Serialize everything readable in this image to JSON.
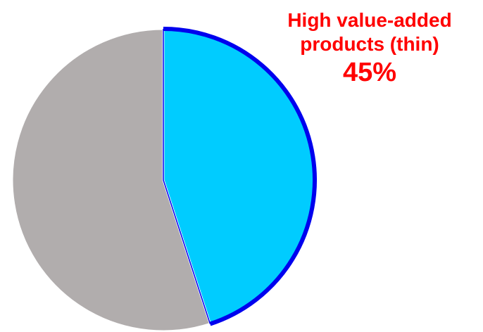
{
  "chart_data": {
    "type": "pie",
    "title": "",
    "slices": [
      {
        "label_lines": [
          "High value-added",
          "products (thin)"
        ],
        "value_label": "45%",
        "value": 45,
        "color": "#00ccff",
        "edge_color": "#0000ee",
        "label_color": "#ff0000"
      },
      {
        "label_lines": [],
        "value_label": "",
        "value": 55,
        "color": "#b1adad"
      }
    ],
    "start_angle_deg": 0,
    "direction": "clockwise",
    "legend": "none"
  }
}
